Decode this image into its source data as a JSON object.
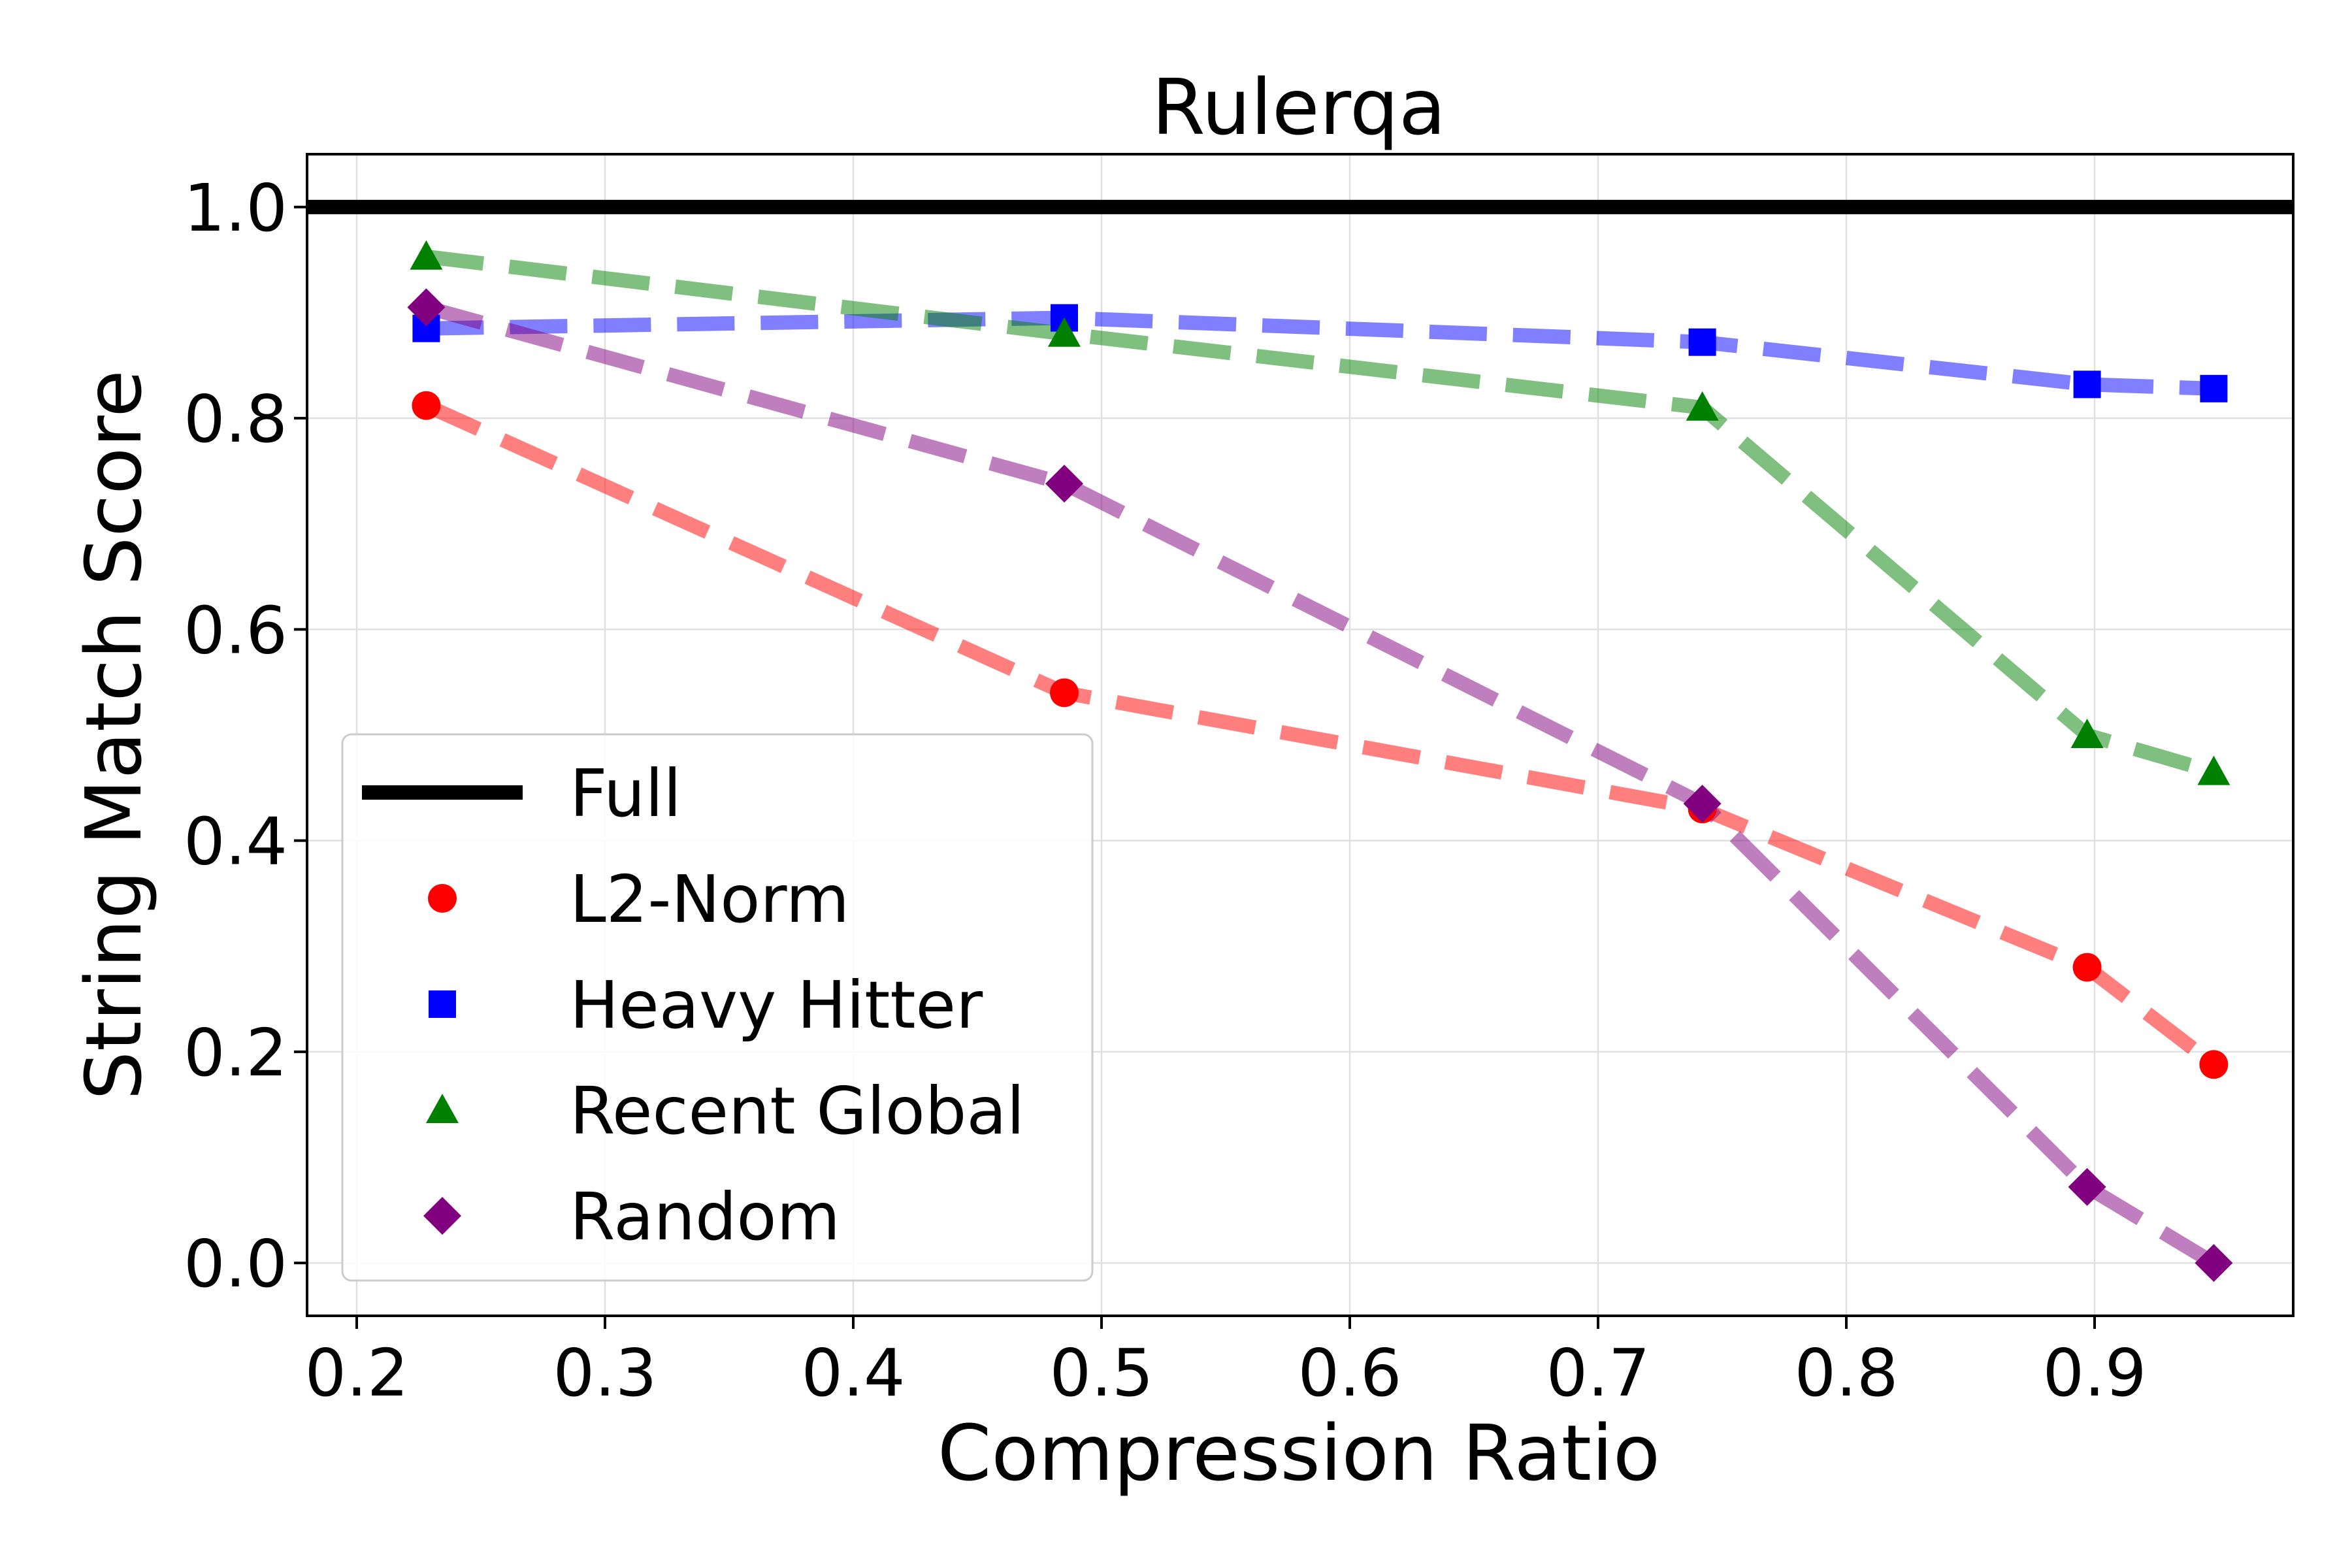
{
  "chart_data": {
    "type": "line",
    "title": "Rulerqa",
    "xlabel": "Compression Ratio",
    "ylabel": "String Match Score",
    "xlim": [
      0.18,
      0.98
    ],
    "ylim": [
      -0.05,
      1.05
    ],
    "xticks": [
      "0.2",
      "0.3",
      "0.4",
      "0.5",
      "0.6",
      "0.7",
      "0.8",
      "0.9"
    ],
    "yticks": [
      "0.0",
      "0.2",
      "0.4",
      "0.6",
      "0.8",
      "1.0"
    ],
    "grid": true,
    "legend_position": "lower-left",
    "reference_line": {
      "name": "Full",
      "y": 1.0,
      "color": "#000000"
    },
    "series": [
      {
        "name": "L2-Norm",
        "color": "#ff0000",
        "marker": "circle",
        "x": [
          0.228,
          0.485,
          0.742,
          0.897,
          0.948
        ],
        "y": [
          0.812,
          0.54,
          0.43,
          0.28,
          0.188
        ]
      },
      {
        "name": "Heavy Hitter",
        "color": "#0000ff",
        "marker": "square",
        "x": [
          0.228,
          0.485,
          0.742,
          0.897,
          0.948
        ],
        "y": [
          0.885,
          0.895,
          0.872,
          0.832,
          0.828
        ]
      },
      {
        "name": "Recent Global",
        "color": "#008000",
        "marker": "triangle",
        "x": [
          0.228,
          0.485,
          0.742,
          0.897,
          0.948
        ],
        "y": [
          0.953,
          0.88,
          0.81,
          0.5,
          0.465
        ]
      },
      {
        "name": "Random",
        "color": "#800080",
        "marker": "diamond",
        "x": [
          0.228,
          0.485,
          0.742,
          0.897,
          0.948
        ],
        "y": [
          0.905,
          0.738,
          0.435,
          0.072,
          0.0
        ]
      }
    ]
  }
}
